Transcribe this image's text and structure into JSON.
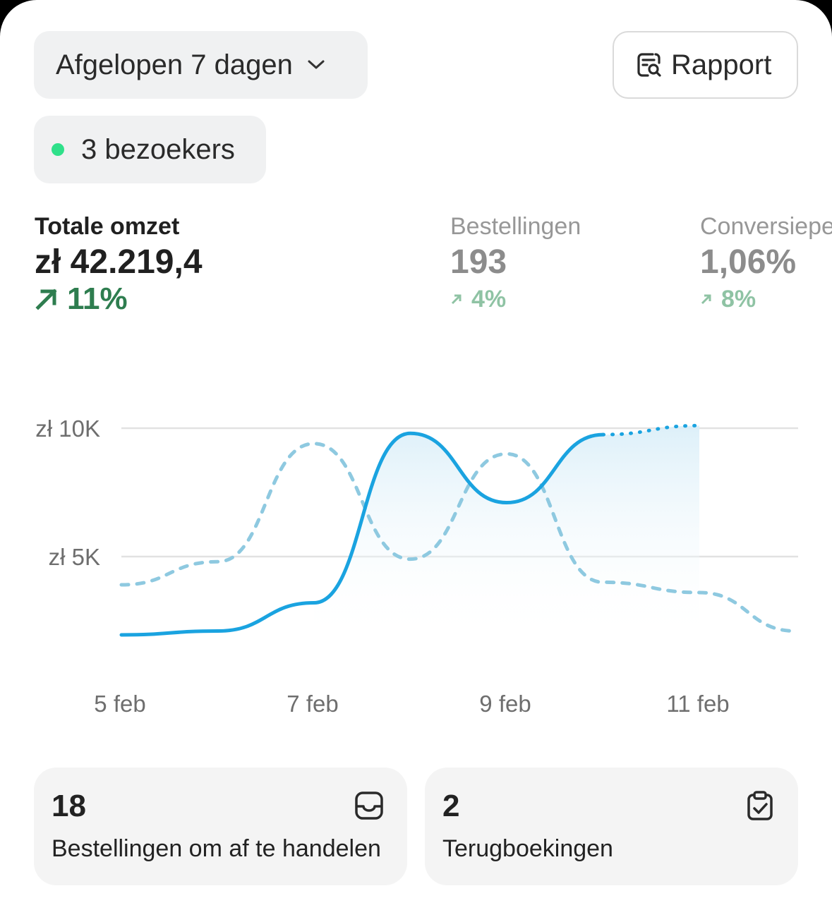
{
  "toolbar": {
    "period_label": "Afgelopen 7 dagen",
    "report_label": "Rapport"
  },
  "visitors": {
    "label": "3 bezoekers",
    "dot_color": "#2fe08a"
  },
  "metrics": [
    {
      "label": "Totale omzet",
      "value": "zł 42.219,4",
      "change": "11%"
    },
    {
      "label": "Bestellingen",
      "value": "193",
      "change": "4%"
    },
    {
      "label": "Conversiepercentage",
      "value": "1,06%",
      "change": "8%"
    }
  ],
  "chart_data": {
    "type": "line",
    "y_tick_labels": [
      "zł 10K",
      "zł 5K"
    ],
    "x_tick_labels": [
      "5 feb",
      "7 feb",
      "9 feb",
      "11 feb"
    ],
    "ylim": [
      0,
      10000
    ],
    "grid": true,
    "colors": {
      "current": "#1aa3e0",
      "previous": "#8ec9e0"
    },
    "series": [
      {
        "style": "solid",
        "x": [
          "5 feb",
          "6 feb",
          "7 feb",
          "8 feb",
          "9 feb",
          "10 feb",
          "11 feb"
        ],
        "values": [
          1950,
          2100,
          3200,
          9800,
          7100,
          9750,
          10100
        ],
        "projected_from_index": 5
      },
      {
        "style": "dashed",
        "x": [
          "5 feb",
          "6 feb",
          "7 feb",
          "8 feb",
          "9 feb",
          "10 feb",
          "11 feb",
          "12 feb"
        ],
        "values": [
          3900,
          4800,
          9400,
          4900,
          9000,
          4000,
          3600,
          2100
        ]
      }
    ]
  },
  "cards": [
    {
      "count": "18",
      "label": "Bestellingen om af te handelen",
      "icon": "inbox-icon"
    },
    {
      "count": "2",
      "label": "Terugboekingen",
      "icon": "clipboard-check-icon"
    }
  ]
}
